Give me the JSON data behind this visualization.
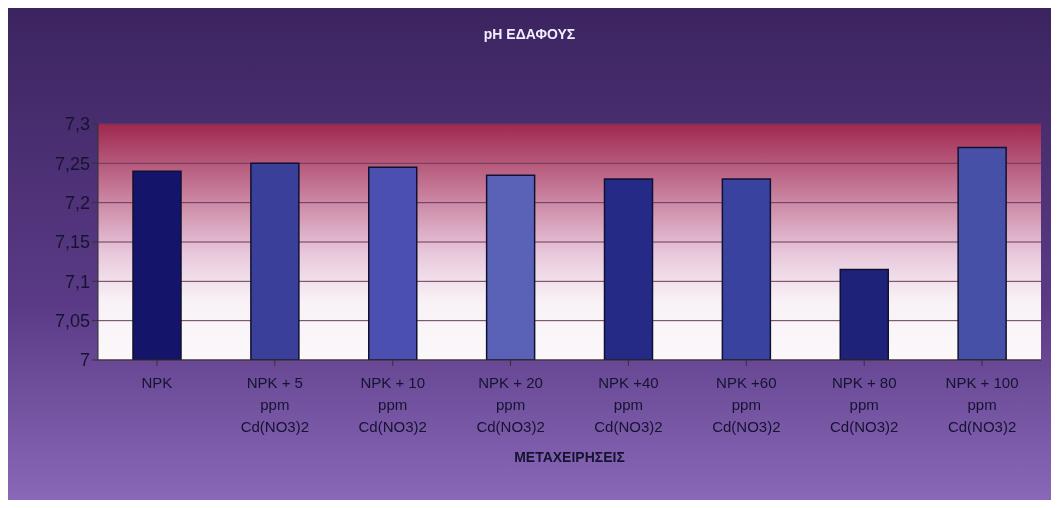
{
  "chart_data": {
    "type": "bar",
    "title": "pH ΕΔΑΦΟΥΣ",
    "xlabel": "ΜΕΤΑΧΕΙΡΗΣΕΙΣ",
    "categories": [
      "NPK",
      "NPK + 5 ppm Cd(NO3)2",
      "NPK + 10 ppm Cd(NO3)2",
      "NPK + 20 ppm Cd(NO3)2",
      "NPK +40 ppm Cd(NO3)2",
      "NPK +60 ppm Cd(NO3)2",
      "NPK + 80 ppm Cd(NO3)2",
      "NPK + 100 ppm Cd(NO3)2"
    ],
    "values": [
      7.24,
      7.25,
      7.245,
      7.235,
      7.23,
      7.23,
      7.115,
      7.27
    ],
    "colors": [
      "#14146a",
      "#3a3f9a",
      "#4a4fb0",
      "#5a62b8",
      "#242a86",
      "#3a42a0",
      "#1e2278",
      "#4650a6"
    ],
    "ylim": [
      7,
      7.3
    ],
    "yticks": [
      {
        "value": 7,
        "label": "7"
      },
      {
        "value": 7.05,
        "label": "7,05"
      },
      {
        "value": 7.1,
        "label": "7,1"
      },
      {
        "value": 7.15,
        "label": "7,15"
      },
      {
        "value": 7.2,
        "label": "7,2"
      },
      {
        "value": 7.25,
        "label": "7,25"
      },
      {
        "value": 7.3,
        "label": "7,3"
      }
    ],
    "grid": "y"
  }
}
